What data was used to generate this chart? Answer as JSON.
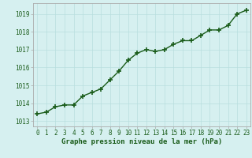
{
  "x": [
    0,
    1,
    2,
    3,
    4,
    5,
    6,
    7,
    8,
    9,
    10,
    11,
    12,
    13,
    14,
    15,
    16,
    17,
    18,
    19,
    20,
    21,
    22,
    23
  ],
  "y": [
    1013.4,
    1013.5,
    1013.8,
    1013.9,
    1013.9,
    1014.4,
    1014.6,
    1014.8,
    1015.3,
    1015.8,
    1016.4,
    1016.8,
    1017.0,
    1016.9,
    1017.0,
    1017.3,
    1017.5,
    1017.5,
    1017.8,
    1018.1,
    1018.1,
    1018.35,
    1019.0,
    1019.2
  ],
  "line_color": "#1a5c1a",
  "marker_color": "#1a5c1a",
  "bg_color": "#d6f0f0",
  "grid_color": "#b8dede",
  "border_color": "#aaaaaa",
  "ylabel_ticks": [
    1013,
    1014,
    1015,
    1016,
    1017,
    1018,
    1019
  ],
  "xlabel": "Graphe pression niveau de la mer (hPa)",
  "ylim": [
    1012.7,
    1019.6
  ],
  "xlim": [
    -0.5,
    23.5
  ],
  "xlabel_fontsize": 6.5,
  "tick_fontsize": 5.5,
  "line_width": 1.0,
  "marker_size": 4
}
